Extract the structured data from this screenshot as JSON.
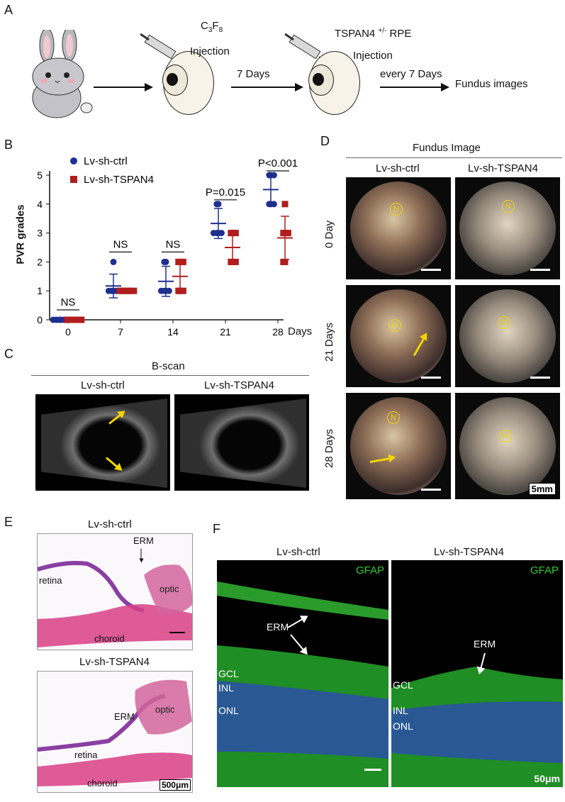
{
  "panels": {
    "A": "A",
    "B": "B",
    "C": "C",
    "D": "D",
    "E": "E",
    "F": "F"
  },
  "panelA": {
    "c3f8_label": "C3F8",
    "injection1": "Injection",
    "interval1": "7 Days",
    "tspan_label": "TSPAN4 +/- RPE",
    "injection2": "Injection",
    "interval2": "every 7 Days",
    "result": "Fundus images"
  },
  "panelB": {
    "ylabel": "PVR grades",
    "xunit": "Days",
    "legend": [
      "Lv-sh-ctrl",
      "Lv-sh-TSPAN4"
    ],
    "annotations": [
      "NS",
      "NS",
      "NS",
      "P=0.015",
      "P<0.001"
    ]
  },
  "chart_data": {
    "type": "scatter",
    "x": [
      0,
      7,
      14,
      21,
      28
    ],
    "xlabel": "Days",
    "ylabel": "PVR grades",
    "ylim": [
      0,
      5
    ],
    "yticks": [
      0,
      1,
      2,
      3,
      4,
      5
    ],
    "legend_position": "top-left",
    "series": [
      {
        "name": "Lv-sh-ctrl",
        "color": "#1f2f8f",
        "mean": [
          0,
          1.17,
          1.33,
          3.33,
          4.5
        ],
        "sd": [
          0,
          0.41,
          0.52,
          0.52,
          0.55
        ],
        "points": [
          [
            0,
            0,
            0,
            0,
            0,
            0
          ],
          [
            1,
            1,
            1,
            1,
            1,
            2
          ],
          [
            1,
            1,
            1,
            1,
            2,
            2
          ],
          [
            3,
            3,
            3,
            3,
            4,
            4
          ],
          [
            4,
            4,
            4,
            5,
            5,
            5
          ]
        ]
      },
      {
        "name": "Lv-sh-TSPAN4",
        "color": "#b01e1e",
        "mean": [
          0,
          1,
          1.5,
          2.5,
          2.83
        ],
        "sd": [
          0,
          0,
          0.55,
          0.55,
          0.75
        ],
        "points": [
          [
            0,
            0,
            0,
            0,
            0,
            0
          ],
          [
            1,
            1,
            1,
            1,
            1,
            1
          ],
          [
            1,
            1,
            1,
            2,
            2,
            2
          ],
          [
            2,
            2,
            2,
            3,
            3,
            3
          ],
          [
            2,
            2,
            3,
            3,
            3,
            4
          ]
        ]
      }
    ],
    "annotations": [
      "NS",
      "NS",
      "NS",
      "P=0.015",
      "P<0.001"
    ]
  },
  "panelC": {
    "title": "B-scan",
    "col1": "Lv-sh-ctrl",
    "col2": "Lv-sh-TSPAN4"
  },
  "panelD": {
    "title": "Fundus Image",
    "col1": "Lv-sh-ctrl",
    "col2": "Lv-sh-TSPAN4",
    "rows": [
      "0 Day",
      "21 Days",
      "28 Days"
    ],
    "n": "N",
    "scale": "5mm"
  },
  "panelE": {
    "top_title": "Lv-sh-ctrl",
    "bottom_title": "Lv-sh-TSPAN4",
    "erm": "ERM",
    "retina": "retina",
    "optic": "optic",
    "choroid": "choroid",
    "scale": "500μm"
  },
  "panelF": {
    "col1": "Lv-sh-ctrl",
    "col2": "Lv-sh-TSPAN4",
    "stain": "GFAP",
    "erm": "ERM",
    "gcl": "GCL",
    "inl": "INL",
    "onl": "ONL",
    "scale": "50μm"
  }
}
